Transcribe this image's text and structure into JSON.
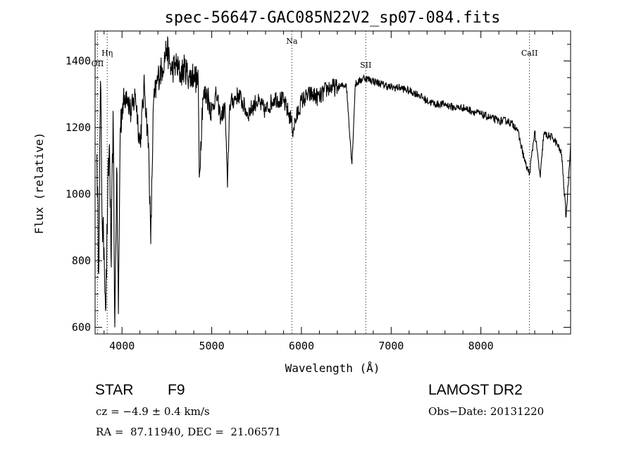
{
  "chart_data": {
    "type": "line",
    "title": "spec-56647-GAC085N22V2_sp07-084.fits",
    "xlabel": "Wavelength (Å)",
    "ylabel": "Flux (relative)",
    "xlim": [
      3700,
      9000
    ],
    "ylim": [
      580,
      1490
    ],
    "x_ticks": [
      4000,
      5000,
      6000,
      7000,
      8000
    ],
    "y_ticks": [
      600,
      800,
      1000,
      1200,
      1400
    ],
    "grid": false,
    "line_markers": [
      {
        "label": "OII",
        "x": 3727
      },
      {
        "label": "Hη",
        "x": 3835
      },
      {
        "label": "Na",
        "x": 5893
      },
      {
        "label": "SII",
        "x": 6717
      },
      {
        "label": "CaII",
        "x": 8542
      }
    ],
    "series": [
      {
        "x": [
          3720,
          3740,
          3760,
          3780,
          3800,
          3820,
          3840,
          3860,
          3880,
          3900,
          3920,
          3940,
          3960,
          3980,
          4000,
          4050,
          4100,
          4150,
          4200,
          4250,
          4300,
          4320,
          4350,
          4400,
          4450,
          4500,
          4550,
          4600,
          4650,
          4700,
          4750,
          4800,
          4850,
          4861,
          4900,
          4950,
          5000,
          5050,
          5100,
          5150,
          5175,
          5200,
          5300,
          5400,
          5500,
          5600,
          5700,
          5800,
          5890,
          5900,
          6000,
          6100,
          6200,
          6300,
          6400,
          6500,
          6563,
          6600,
          6700,
          6800,
          6900,
          7000,
          7100,
          7200,
          7300,
          7400,
          7500,
          7600,
          7700,
          7800,
          7900,
          8000,
          8100,
          8200,
          8300,
          8400,
          8498,
          8542,
          8600,
          8662,
          8700,
          8800,
          8850,
          8900,
          8950,
          9000
        ],
        "values": [
          1120,
          760,
          1340,
          900,
          840,
          660,
          980,
          1150,
          780,
          1250,
          600,
          1080,
          640,
          1200,
          1260,
          1310,
          1240,
          1300,
          1150,
          1330,
          1120,
          850,
          1270,
          1350,
          1380,
          1440,
          1370,
          1390,
          1360,
          1380,
          1350,
          1360,
          1330,
          1050,
          1290,
          1300,
          1250,
          1300,
          1230,
          1260,
          1020,
          1270,
          1300,
          1240,
          1280,
          1250,
          1290,
          1280,
          1220,
          1190,
          1280,
          1300,
          1290,
          1320,
          1320,
          1330,
          1090,
          1330,
          1350,
          1340,
          1330,
          1320,
          1320,
          1310,
          1300,
          1280,
          1270,
          1270,
          1260,
          1260,
          1250,
          1240,
          1230,
          1220,
          1220,
          1200,
          1090,
          1060,
          1190,
          1050,
          1180,
          1170,
          1150,
          1120,
          930,
          1150
        ]
      }
    ]
  },
  "info": {
    "object_class": "STAR",
    "subclass": "F9",
    "survey": "LAMOST DR2",
    "cz": "cz = −4.9 ± 0.4 km/s",
    "obs_date": "Obs−Date: 20131220",
    "coords": "RA =  87.11940, DEC =  21.06571"
  }
}
